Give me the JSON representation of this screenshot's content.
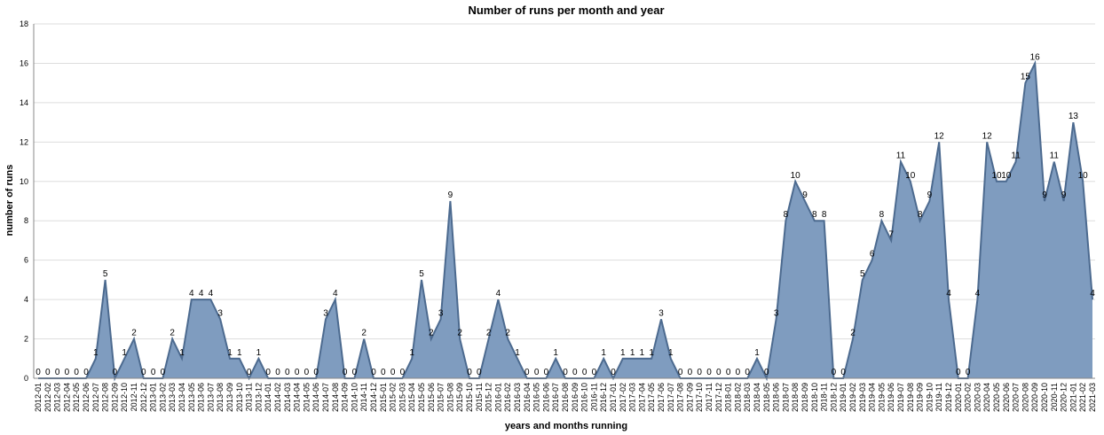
{
  "chart_data": {
    "type": "area",
    "title": "Number of runs per month and year",
    "xlabel": "years and months running",
    "ylabel": "number of runs",
    "ylim": [
      0,
      18
    ],
    "yticks": [
      0,
      2,
      4,
      6,
      8,
      10,
      12,
      14,
      16,
      18
    ],
    "grid": true,
    "fill_color": "#7f9cbf",
    "line_color": "#4c6a8f",
    "categories": [
      "2012-01",
      "2012-02",
      "2012-03",
      "2012-04",
      "2012-05",
      "2012-06",
      "2012-07",
      "2012-08",
      "2012-09",
      "2012-10",
      "2012-11",
      "2012-12",
      "2013-01",
      "2013-02",
      "2013-03",
      "2013-04",
      "2013-05",
      "2013-06",
      "2013-07",
      "2013-08",
      "2013-09",
      "2013-10",
      "2013-11",
      "2013-12",
      "2014-01",
      "2014-02",
      "2014-03",
      "2014-04",
      "2014-05",
      "2014-06",
      "2014-07",
      "2014-08",
      "2014-09",
      "2014-10",
      "2014-11",
      "2014-12",
      "2015-01",
      "2015-02",
      "2015-03",
      "2015-04",
      "2015-05",
      "2015-06",
      "2015-07",
      "2015-08",
      "2015-09",
      "2015-10",
      "2015-11",
      "2015-12",
      "2016-01",
      "2016-02",
      "2016-03",
      "2016-04",
      "2016-05",
      "2016-06",
      "2016-07",
      "2016-08",
      "2016-09",
      "2016-10",
      "2016-11",
      "2016-12",
      "2017-01",
      "2017-02",
      "2017-03",
      "2017-04",
      "2017-05",
      "2017-06",
      "2017-07",
      "2017-08",
      "2017-09",
      "2017-10",
      "2017-11",
      "2017-12",
      "2018-01",
      "2018-02",
      "2018-03",
      "2018-04",
      "2018-05",
      "2018-06",
      "2018-07",
      "2018-08",
      "2018-09",
      "2018-10",
      "2018-11",
      "2018-12",
      "2019-01",
      "2019-02",
      "2019-03",
      "2019-04",
      "2019-05",
      "2019-06",
      "2019-07",
      "2019-08",
      "2019-09",
      "2019-10",
      "2019-11",
      "2019-12",
      "2020-01",
      "2020-02",
      "2020-03",
      "2020-04",
      "2020-05",
      "2020-06",
      "2020-07",
      "2020-08",
      "2020-09",
      "2020-10",
      "2020-11",
      "2020-12",
      "2021-01",
      "2021-02",
      "2021-03"
    ],
    "values": [
      0,
      0,
      0,
      0,
      0,
      0,
      1,
      5,
      0,
      1,
      2,
      0,
      0,
      0,
      2,
      1,
      4,
      4,
      4,
      3,
      1,
      1,
      0,
      1,
      0,
      0,
      0,
      0,
      0,
      0,
      3,
      4,
      0,
      0,
      2,
      0,
      0,
      0,
      0,
      1,
      5,
      2,
      3,
      9,
      2,
      0,
      0,
      2,
      4,
      2,
      1,
      0,
      0,
      0,
      1,
      0,
      0,
      0,
      0,
      1,
      0,
      1,
      1,
      1,
      1,
      3,
      1,
      0,
      0,
      0,
      0,
      0,
      0,
      0,
      0,
      1,
      0,
      3,
      8,
      10,
      9,
      8,
      8,
      0,
      0,
      2,
      5,
      6,
      8,
      7,
      11,
      10,
      8,
      9,
      12,
      4,
      0,
      0,
      4,
      12,
      10,
      10,
      11,
      15,
      16,
      9,
      11,
      9,
      13,
      10,
      4
    ]
  }
}
